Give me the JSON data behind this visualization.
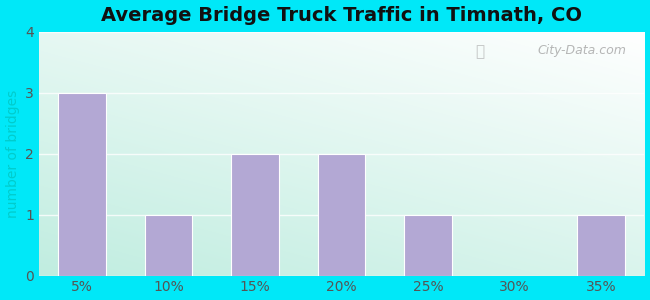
{
  "title": "Average Bridge Truck Traffic in Timnath, CO",
  "categories": [
    "5%",
    "10%",
    "15%",
    "20%",
    "25%",
    "30%",
    "35%"
  ],
  "values": [
    3,
    1,
    2,
    2,
    1,
    0,
    1
  ],
  "bar_color": "#b3a8d4",
  "ylabel": "number of bridges",
  "ylabel_color": "#00cccc",
  "ylim": [
    0,
    4
  ],
  "yticks": [
    0,
    1,
    2,
    3,
    4
  ],
  "title_fontsize": 14,
  "axis_label_fontsize": 10,
  "tick_fontsize": 10,
  "background_outer": "#00e8f8",
  "watermark_text": "City-Data.com",
  "bar_width": 0.55
}
